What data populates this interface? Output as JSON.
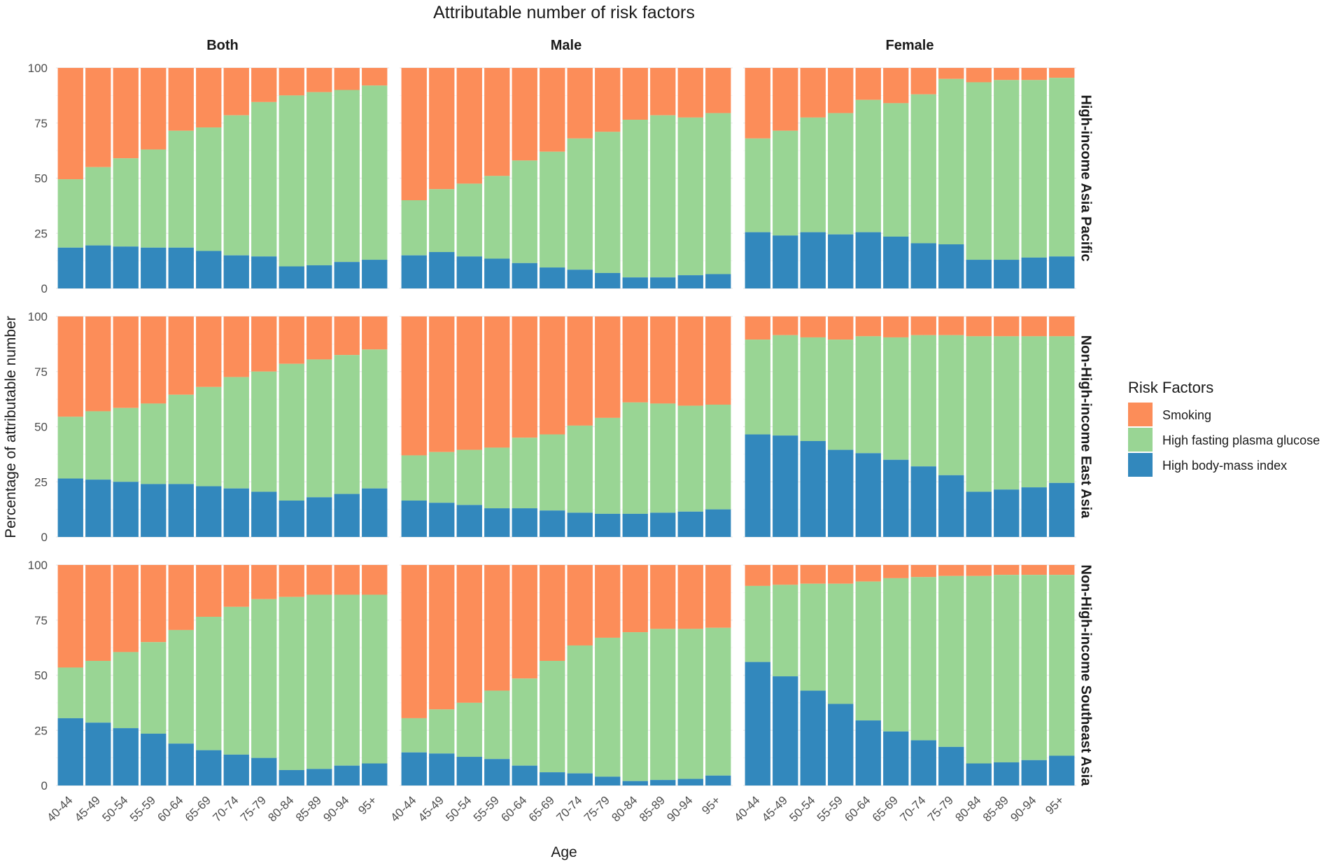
{
  "chart_data": {
    "type": "bar",
    "stacked": true,
    "title": "Attributable number of risk factors",
    "xlabel": "Age",
    "ylabel": "Percentage of attributable number",
    "ylim": [
      0,
      100
    ],
    "yticks": [
      0,
      25,
      50,
      75,
      100
    ],
    "grid": true,
    "legend": {
      "title": "Risk Factors",
      "position": "right",
      "entries": [
        {
          "name": "Smoking",
          "color": "#fc8d59"
        },
        {
          "name": "High fasting plasma glucose",
          "color": "#99d594"
        },
        {
          "name": "High body-mass index",
          "color": "#3288bd"
        }
      ]
    },
    "categories": [
      "40-44",
      "45-49",
      "50-54",
      "55-59",
      "60-64",
      "65-69",
      "70-74",
      "75-79",
      "80-84",
      "85-89",
      "90-94",
      "95+"
    ],
    "sexes": [
      "Both",
      "Male",
      "Female"
    ],
    "regions": [
      "High-income Asia Pacific",
      "Non-High-income East Asia",
      "Non-High-income Southeast Asia"
    ],
    "panels": [
      {
        "region": "High-income Asia Pacific",
        "sex": "Both",
        "bmi": [
          18.5,
          19.5,
          19,
          18.5,
          18.5,
          17,
          15,
          14.5,
          10,
          10.5,
          12,
          13
        ],
        "glucose_top": [
          49.5,
          55,
          59,
          63,
          71.5,
          73,
          78.5,
          84.5,
          87.5,
          89,
          90,
          92
        ]
      },
      {
        "region": "High-income Asia Pacific",
        "sex": "Male",
        "bmi": [
          15,
          16.5,
          14.5,
          13.5,
          11.5,
          9.5,
          8.5,
          7,
          5,
          5,
          6,
          6.5
        ],
        "glucose_top": [
          40,
          45,
          47.5,
          51,
          58,
          62,
          68,
          71,
          76.5,
          78.5,
          77.5,
          79.5
        ]
      },
      {
        "region": "High-income Asia Pacific",
        "sex": "Female",
        "bmi": [
          25.5,
          24,
          25.5,
          24.5,
          25.5,
          23.5,
          20.5,
          20,
          13,
          13,
          14,
          14.5
        ],
        "glucose_top": [
          68,
          71.5,
          77.5,
          79.5,
          85.5,
          84,
          88,
          95,
          93.5,
          94.5,
          94.5,
          95.5
        ]
      },
      {
        "region": "Non-High-income East Asia",
        "sex": "Both",
        "bmi": [
          26.5,
          26,
          25,
          24,
          24,
          23,
          22,
          20.5,
          16.5,
          18,
          19.5,
          22
        ],
        "glucose_top": [
          54.5,
          57,
          58.5,
          60.5,
          64.5,
          68,
          72.5,
          75,
          78.5,
          80.5,
          82.5,
          85
        ]
      },
      {
        "region": "Non-High-income East Asia",
        "sex": "Male",
        "bmi": [
          16.5,
          15.5,
          14.5,
          13,
          13,
          12,
          11,
          10.5,
          10.5,
          11,
          11.5,
          12.5
        ],
        "glucose_top": [
          37,
          38.5,
          39.5,
          40.5,
          45,
          46.5,
          50.5,
          54,
          61,
          60.5,
          59.5,
          60
        ]
      },
      {
        "region": "Non-High-income East Asia",
        "sex": "Female",
        "bmi": [
          46.5,
          46,
          43.5,
          39.5,
          38,
          35,
          32,
          28,
          20.5,
          21.5,
          22.5,
          24.5
        ],
        "glucose_top": [
          89.5,
          91.5,
          90.5,
          89.5,
          91,
          90.5,
          91.5,
          91.5,
          91,
          91,
          91,
          91
        ]
      },
      {
        "region": "Non-High-income Southeast Asia",
        "sex": "Both",
        "bmi": [
          30.5,
          28.5,
          26,
          23.5,
          19,
          16,
          14,
          12.5,
          7,
          7.5,
          9,
          10
        ],
        "glucose_top": [
          53.5,
          56.5,
          60.5,
          65,
          70.5,
          76.5,
          81,
          84.5,
          85.5,
          86.5,
          86.5,
          86.5
        ]
      },
      {
        "region": "Non-High-income Southeast Asia",
        "sex": "Male",
        "bmi": [
          15,
          14.5,
          13,
          12,
          9,
          6,
          5.5,
          4,
          2,
          2.5,
          3,
          4.5
        ],
        "glucose_top": [
          30.5,
          34.5,
          37.5,
          43,
          48.5,
          56.5,
          63.5,
          67,
          69.5,
          71,
          71,
          71.5
        ]
      },
      {
        "region": "Non-High-income Southeast Asia",
        "sex": "Female",
        "bmi": [
          56,
          49.5,
          43,
          37,
          29.5,
          24.5,
          20.5,
          17.5,
          10,
          10.5,
          11.5,
          13.5
        ],
        "glucose_top": [
          90.5,
          91,
          91.5,
          91.5,
          92.5,
          94,
          94.5,
          95,
          95,
          95.5,
          95.5,
          95.5
        ]
      }
    ]
  }
}
